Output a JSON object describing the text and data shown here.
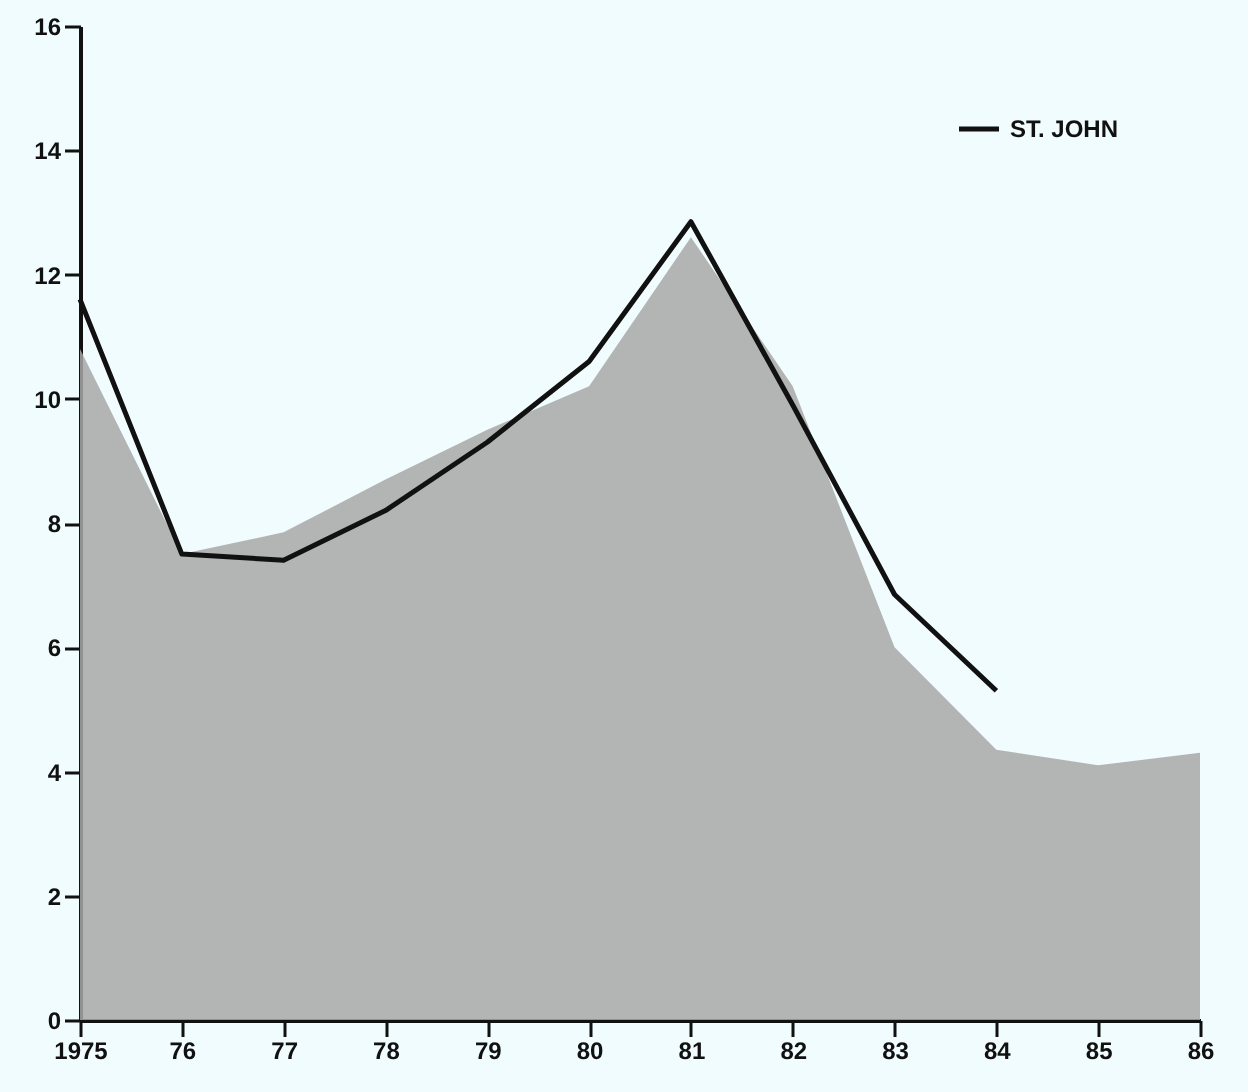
{
  "chart_data": {
    "type": "area",
    "categories": [
      "1975",
      "76",
      "77",
      "78",
      "79",
      "80",
      "81",
      "82",
      "83",
      "84",
      "85",
      "86"
    ],
    "series": [
      {
        "color": "#a8a8a8",
        "values": [
          10.8,
          7.5,
          7.85,
          8.7,
          9.5,
          10.2,
          12.6,
          10.2,
          6.0,
          4.35,
          4.1,
          4.3
        ]
      },
      {
        "type": "line",
        "name": "ST. JOHN",
        "color": "#111111",
        "values": [
          11.6,
          7.5,
          7.4,
          8.2,
          9.3,
          10.6,
          12.85,
          9.9,
          6.85,
          5.3,
          null,
          null
        ]
      }
    ],
    "ylim": [
      0,
      16
    ],
    "yticks": [
      0,
      2,
      4,
      6,
      8,
      10,
      12,
      14,
      16
    ],
    "legend": "top right",
    "line_style": "solid",
    "marker": "none"
  }
}
